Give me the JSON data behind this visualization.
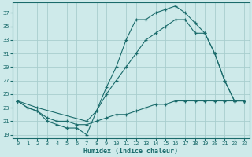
{
  "xlabel": "Humidex (Indice chaleur)",
  "bg_color": "#ceeaea",
  "grid_color": "#a8cece",
  "line_color": "#1a6b6b",
  "xlim": [
    -0.5,
    23.5
  ],
  "ylim": [
    18.5,
    38.5
  ],
  "yticks": [
    19,
    21,
    23,
    25,
    27,
    29,
    31,
    33,
    35,
    37
  ],
  "xticks": [
    0,
    1,
    2,
    3,
    4,
    5,
    6,
    7,
    8,
    9,
    10,
    11,
    12,
    13,
    14,
    15,
    16,
    17,
    18,
    19,
    20,
    21,
    22,
    23
  ],
  "line1_x": [
    0,
    1,
    2,
    3,
    4,
    5,
    6,
    7,
    8,
    9,
    10,
    11,
    12,
    13,
    14,
    15,
    16,
    17,
    18,
    19,
    20,
    21,
    22,
    23
  ],
  "line1_y": [
    24,
    23,
    22.5,
    21,
    20.5,
    20,
    20,
    19,
    22.5,
    26,
    29,
    33,
    36,
    36,
    37,
    37.5,
    38,
    37,
    35.5,
    34,
    31,
    27,
    24,
    24
  ],
  "line2_x": [
    0,
    2,
    7,
    8,
    9,
    10,
    11,
    12,
    13,
    14,
    15,
    16,
    17,
    18,
    19,
    20,
    21,
    22,
    23
  ],
  "line2_y": [
    24,
    23,
    21,
    22.5,
    25,
    27,
    29,
    31,
    33,
    34,
    35,
    36,
    36,
    34,
    34,
    31,
    27,
    24,
    24
  ],
  "line3_x": [
    0,
    1,
    2,
    3,
    4,
    5,
    6,
    7,
    8,
    9,
    10,
    11,
    12,
    13,
    14,
    15,
    16,
    17,
    18,
    19,
    20,
    21,
    22,
    23
  ],
  "line3_y": [
    24,
    23,
    22.5,
    21.5,
    21,
    21,
    20.5,
    20.5,
    21,
    21.5,
    22,
    22,
    22.5,
    23,
    23.5,
    23.5,
    24,
    24,
    24,
    24,
    24,
    24,
    24,
    24
  ]
}
